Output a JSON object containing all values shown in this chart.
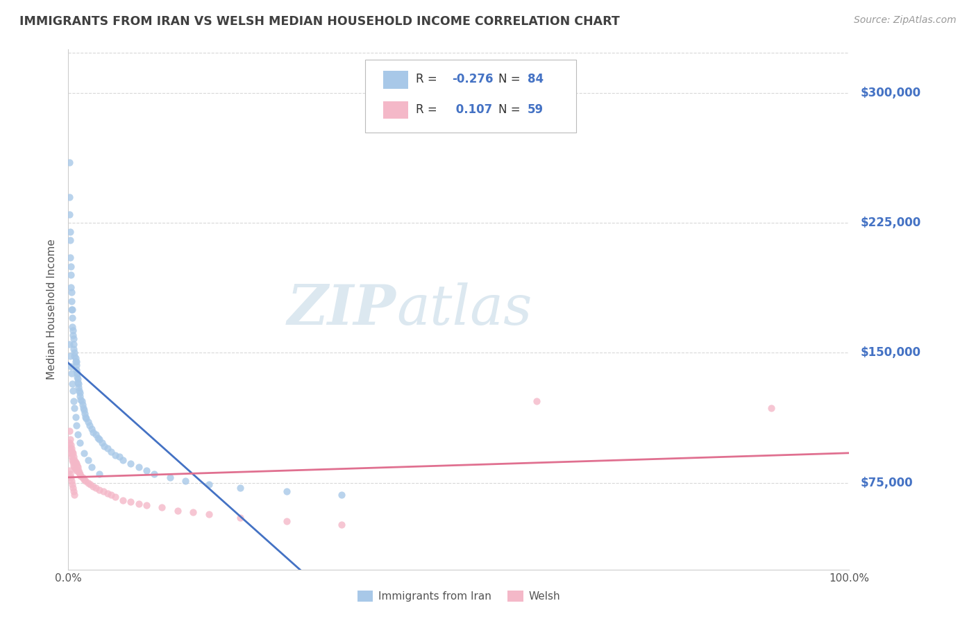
{
  "title": "IMMIGRANTS FROM IRAN VS WELSH MEDIAN HOUSEHOLD INCOME CORRELATION CHART",
  "source_text": "Source: ZipAtlas.com",
  "ylabel": "Median Household Income",
  "watermark_zip": "ZIP",
  "watermark_atlas": "atlas",
  "xmin": 0.0,
  "xmax": 1.0,
  "ymin": 25000,
  "ymax": 325000,
  "yticks": [
    75000,
    150000,
    225000,
    300000
  ],
  "ytick_labels": [
    "$75,000",
    "$150,000",
    "$225,000",
    "$300,000"
  ],
  "xtick_labels": [
    "0.0%",
    "100.0%"
  ],
  "legend_label_bottom": [
    "Immigrants from Iran",
    "Welsh"
  ],
  "series1_color": "#a8c8e8",
  "series1_line_color": "#4472c4",
  "series2_color": "#f4b8c8",
  "series2_line_color": "#e07090",
  "trend1_dashed_color": "#a8c8e8",
  "background_color": "#ffffff",
  "grid_color": "#c8c8c8",
  "title_color": "#404040",
  "right_label_color": "#4472c4",
  "series1_R": -0.276,
  "series1_N": 84,
  "series2_R": 0.107,
  "series2_N": 59,
  "series1_x": [
    0.001,
    0.001,
    0.001,
    0.002,
    0.002,
    0.002,
    0.003,
    0.003,
    0.003,
    0.004,
    0.004,
    0.004,
    0.005,
    0.005,
    0.005,
    0.006,
    0.006,
    0.007,
    0.007,
    0.007,
    0.008,
    0.008,
    0.009,
    0.009,
    0.01,
    0.01,
    0.01,
    0.011,
    0.011,
    0.012,
    0.012,
    0.013,
    0.013,
    0.014,
    0.015,
    0.015,
    0.016,
    0.017,
    0.018,
    0.019,
    0.02,
    0.021,
    0.022,
    0.023,
    0.025,
    0.027,
    0.03,
    0.032,
    0.035,
    0.038,
    0.04,
    0.043,
    0.046,
    0.05,
    0.055,
    0.06,
    0.065,
    0.07,
    0.08,
    0.09,
    0.1,
    0.11,
    0.13,
    0.15,
    0.18,
    0.22,
    0.28,
    0.35,
    0.001,
    0.002,
    0.003,
    0.004,
    0.005,
    0.006,
    0.007,
    0.008,
    0.009,
    0.01,
    0.012,
    0.015,
    0.02,
    0.025,
    0.03,
    0.04
  ],
  "series1_y": [
    260000,
    240000,
    230000,
    220000,
    215000,
    205000,
    200000,
    195000,
    188000,
    185000,
    180000,
    175000,
    175000,
    170000,
    165000,
    163000,
    160000,
    158000,
    155000,
    152000,
    150000,
    148000,
    147000,
    145000,
    145000,
    143000,
    140000,
    138000,
    136000,
    135000,
    133000,
    132000,
    130000,
    128000,
    127000,
    125000,
    123000,
    122000,
    120000,
    118000,
    117000,
    115000,
    113000,
    112000,
    110000,
    108000,
    106000,
    104000,
    103000,
    101000,
    100000,
    98000,
    96000,
    95000,
    93000,
    91000,
    90000,
    88000,
    86000,
    84000,
    82000,
    80000,
    78000,
    76000,
    74000,
    72000,
    70000,
    68000,
    155000,
    148000,
    142000,
    138000,
    132000,
    128000,
    122000,
    118000,
    113000,
    108000,
    103000,
    98000,
    92000,
    88000,
    84000,
    80000
  ],
  "series2_x": [
    0.001,
    0.001,
    0.002,
    0.002,
    0.003,
    0.003,
    0.004,
    0.004,
    0.005,
    0.005,
    0.006,
    0.006,
    0.007,
    0.007,
    0.008,
    0.008,
    0.009,
    0.009,
    0.01,
    0.01,
    0.011,
    0.012,
    0.013,
    0.014,
    0.015,
    0.016,
    0.018,
    0.02,
    0.022,
    0.025,
    0.028,
    0.032,
    0.035,
    0.04,
    0.045,
    0.05,
    0.055,
    0.06,
    0.07,
    0.08,
    0.09,
    0.1,
    0.12,
    0.14,
    0.16,
    0.18,
    0.22,
    0.28,
    0.35,
    0.001,
    0.002,
    0.003,
    0.004,
    0.005,
    0.006,
    0.007,
    0.008,
    0.6,
    0.9
  ],
  "series2_y": [
    105000,
    98000,
    100000,
    95000,
    97000,
    92000,
    95000,
    90000,
    93000,
    88000,
    92000,
    87000,
    90000,
    85000,
    88000,
    84000,
    87000,
    83000,
    86000,
    82000,
    85000,
    84000,
    82000,
    81000,
    80000,
    79000,
    78000,
    77000,
    76000,
    75000,
    74000,
    73000,
    72000,
    71000,
    70000,
    69000,
    68000,
    67000,
    65000,
    64000,
    63000,
    62000,
    61000,
    59000,
    58000,
    57000,
    55000,
    53000,
    51000,
    82000,
    80000,
    78000,
    76000,
    74000,
    72000,
    70000,
    68000,
    122000,
    118000
  ]
}
